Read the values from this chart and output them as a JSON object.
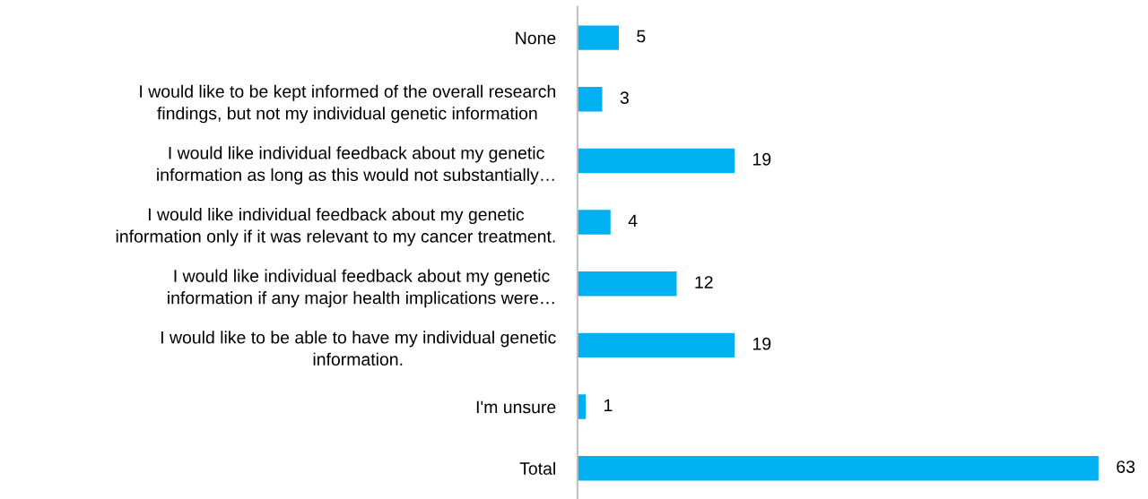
{
  "chart_data": {
    "type": "bar",
    "orientation": "horizontal",
    "categories": [
      "None",
      "I would like to be kept informed of the overall research\nfindings, but not my individual genetic information",
      "I would like individual feedback about my genetic\ninformation as long as this would not substantially…",
      "I would like individual feedback about my genetic\ninformation only if it was relevant to my cancer treatment.",
      "I would like individual feedback about my genetic\ninformation if any major health implications were…",
      "I would like to be able to have my individual genetic\ninformation.",
      "I'm unsure",
      "Total"
    ],
    "values": [
      5,
      3,
      19,
      4,
      12,
      19,
      1,
      63
    ],
    "color": "#00b0f0",
    "data_labels": true,
    "tick_labels": "y"
  }
}
